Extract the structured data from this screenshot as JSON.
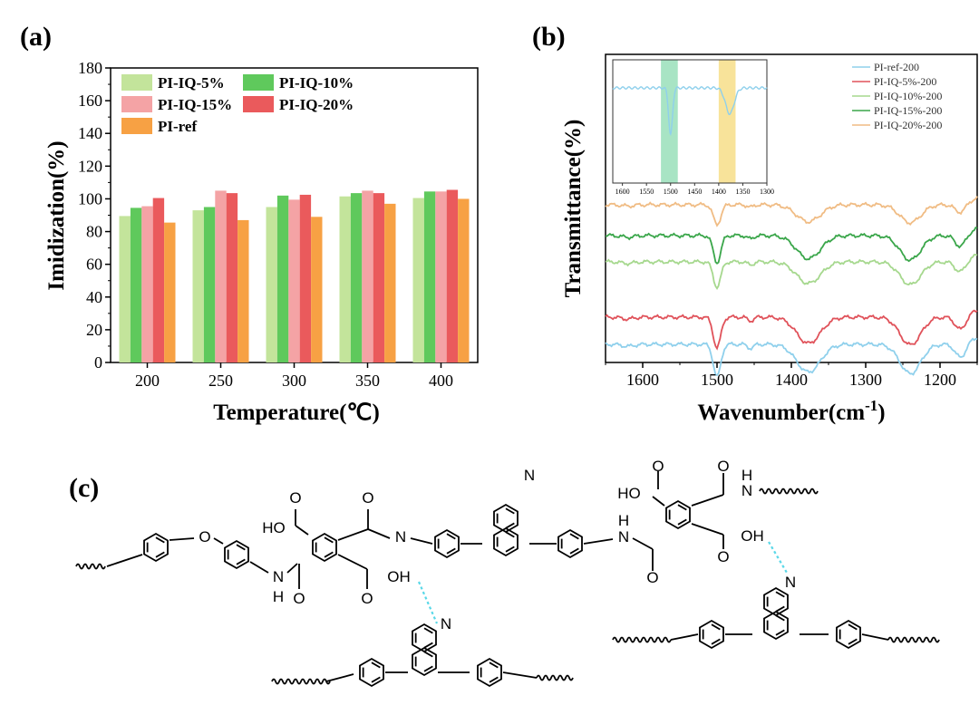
{
  "panels": {
    "a": {
      "label": "(a)"
    },
    "b": {
      "label": "(b)"
    },
    "c": {
      "label": "(c)"
    }
  },
  "chart_data": [
    {
      "type": "bar",
      "xlabel": "Temperature(℃)",
      "ylabel": "Imidization(%)",
      "ylim": [
        0,
        180
      ],
      "yticks": [
        0,
        20,
        40,
        60,
        80,
        100,
        120,
        140,
        160,
        180
      ],
      "categories": [
        "200",
        "250",
        "300",
        "350",
        "400"
      ],
      "legend_position": "top-left",
      "series": [
        {
          "name": "PI-IQ-5%",
          "color": "#c3e49b",
          "values": [
            89.5,
            93.0,
            95.0,
            101.5,
            100.5
          ]
        },
        {
          "name": "PI-IQ-10%",
          "color": "#5fc95c",
          "values": [
            94.5,
            95.0,
            102.0,
            103.5,
            104.5
          ]
        },
        {
          "name": "PI-IQ-15%",
          "color": "#f4a3a5",
          "values": [
            95.5,
            105.0,
            99.5,
            105.0,
            104.5
          ]
        },
        {
          "name": "PI-IQ-20%",
          "color": "#ea5a5c",
          "values": [
            100.5,
            103.5,
            102.5,
            103.5,
            105.5
          ]
        },
        {
          "name": "PI-ref",
          "color": "#f7a144",
          "values": [
            85.5,
            87.0,
            89.0,
            97.0,
            100.0
          ]
        }
      ]
    },
    {
      "type": "line",
      "xlabel": "Wavenumber(cm",
      "xlabel_sup": "-1",
      "xlabel_end": ")",
      "ylabel": "Transmittance(%)",
      "xlim": [
        1650,
        1150
      ],
      "xticks": [
        1600,
        1500,
        1400,
        1300,
        1200
      ],
      "legend_position": "top-right",
      "series": [
        {
          "name": "PI-ref-200",
          "color": "#8fd0ec"
        },
        {
          "name": "PI-IQ-5%-200",
          "color": "#e0525a"
        },
        {
          "name": "PI-IQ-10%-200",
          "color": "#a6d88e"
        },
        {
          "name": "PI-IQ-15%-200",
          "color": "#3aa64a"
        },
        {
          "name": "PI-IQ-20%-200",
          "color": "#f0bc84"
        }
      ],
      "inset": {
        "xticks": [
          1600,
          1550,
          1500,
          1450,
          1400,
          1350,
          1300
        ],
        "highlight_bands": [
          {
            "from": 1520,
            "to": 1485,
            "color": "#a8e4c4"
          },
          {
            "from": 1400,
            "to": 1365,
            "color": "#f8e39a"
          }
        ],
        "color": "#8fd0ec"
      }
    }
  ],
  "structure": {
    "atoms": {
      "O": "O",
      "N": "N",
      "H": "H",
      "OH": "OH",
      "HO": "HO"
    }
  }
}
